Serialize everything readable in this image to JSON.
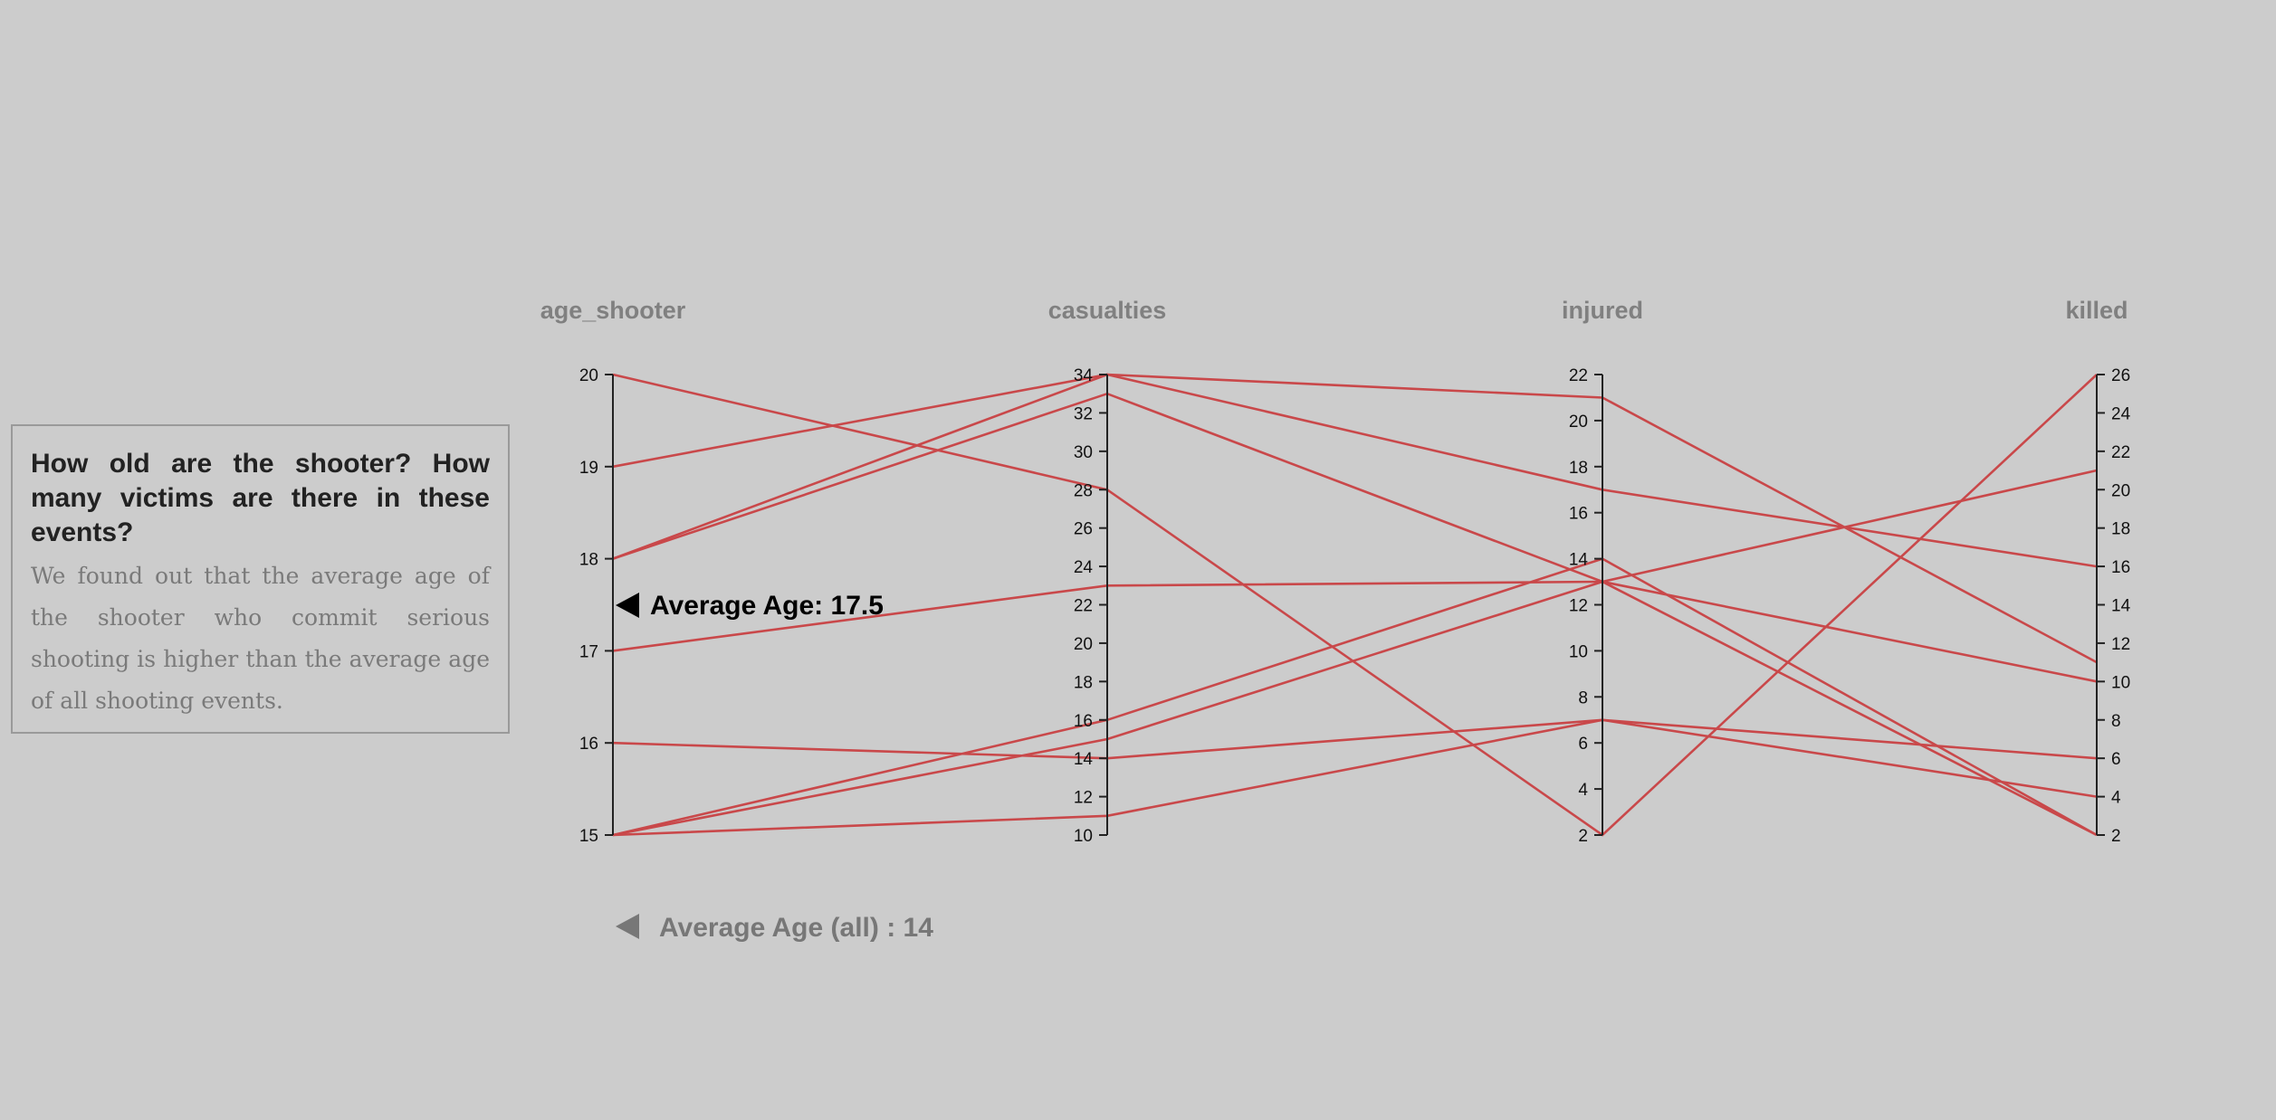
{
  "info": {
    "title": "How old are the shooter? How many victims are there in these events?",
    "body": "We found out that the average age of the shooter who commit serious shooting is higher than the average age of all shooting events."
  },
  "annotations": {
    "average_age": "Average Age: 17.5",
    "average_age_all": "Average Age (all) : 14"
  },
  "colors": {
    "line": "#c9484a",
    "axis": "#222222",
    "background": "#cccccc"
  },
  "chart_data": {
    "type": "parallel_coordinates",
    "dimensions": [
      {
        "name": "age_shooter",
        "domain": [
          15,
          20
        ],
        "ticks": [
          15,
          16,
          17,
          18,
          19,
          20
        ],
        "tick_side": "left"
      },
      {
        "name": "casualties",
        "domain": [
          10,
          34
        ],
        "ticks": [
          10,
          12,
          14,
          16,
          18,
          20,
          22,
          24,
          26,
          28,
          30,
          32,
          34
        ],
        "tick_side": "left"
      },
      {
        "name": "injured",
        "domain": [
          2,
          22
        ],
        "ticks": [
          2,
          4,
          6,
          8,
          10,
          12,
          14,
          16,
          18,
          20,
          22
        ],
        "tick_side": "left"
      },
      {
        "name": "killed",
        "domain": [
          2,
          26
        ],
        "ticks": [
          2,
          4,
          6,
          8,
          10,
          12,
          14,
          16,
          18,
          20,
          22,
          24,
          26
        ],
        "tick_side": "right"
      }
    ],
    "records": [
      [
        20,
        28,
        2,
        26
      ],
      [
        19,
        34,
        17,
        16
      ],
      [
        18,
        34,
        21,
        11
      ],
      [
        18,
        33,
        13,
        2
      ],
      [
        17,
        23,
        13,
        10
      ],
      [
        16,
        14,
        7,
        6
      ],
      [
        15,
        16,
        14,
        2
      ],
      [
        15,
        15,
        13,
        21
      ],
      [
        15,
        11,
        7,
        4
      ]
    ],
    "average_marker": {
      "axis": "age_shooter",
      "value": 17.5
    }
  }
}
